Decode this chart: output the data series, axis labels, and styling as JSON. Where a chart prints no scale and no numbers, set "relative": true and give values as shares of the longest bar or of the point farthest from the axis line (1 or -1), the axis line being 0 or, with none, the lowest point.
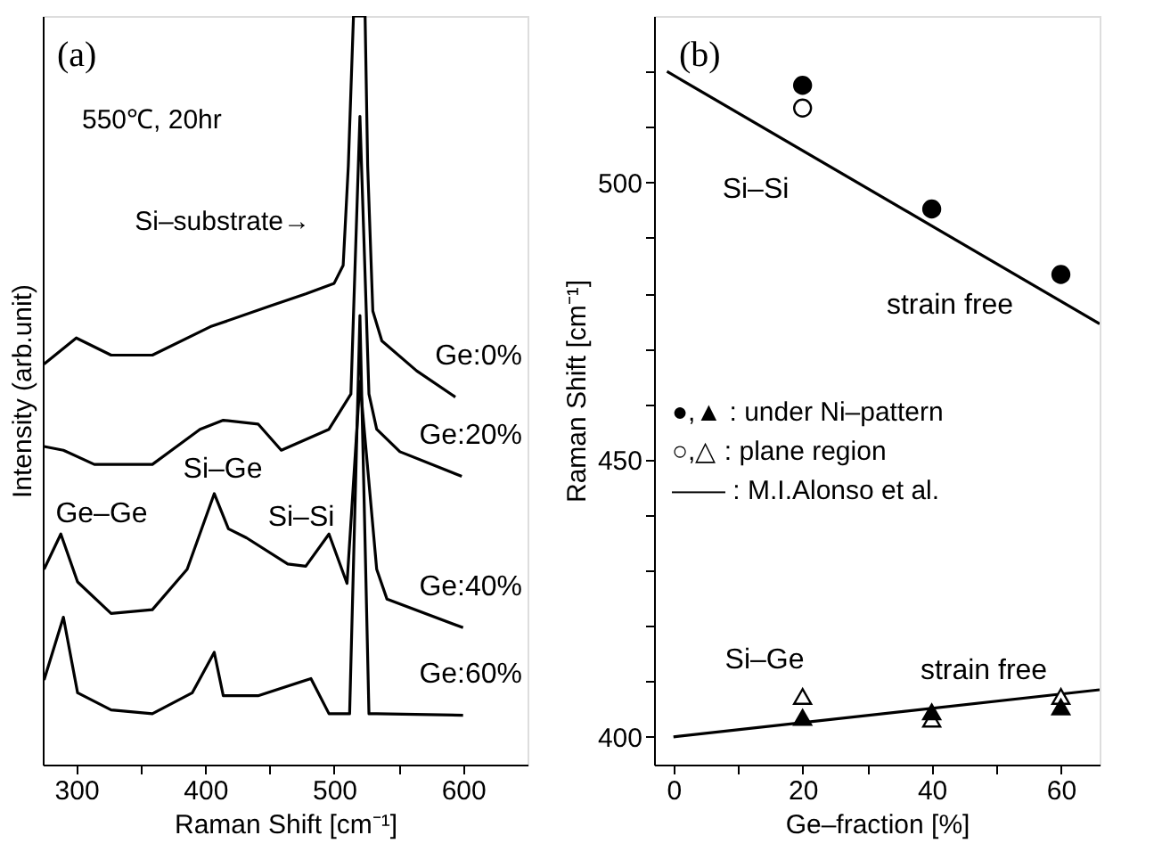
{
  "chart_data": [
    {
      "type": "line",
      "relative": true,
      "xlabel": "Raman Shift [cm⁻¹]",
      "ylabel": "Intensity (arb.unit)",
      "xlim": [
        274,
        650
      ],
      "xticks": [
        300,
        {
          "value": 350,
          "label": null
        },
        400,
        {
          "value": 450,
          "label": null
        },
        500,
        {
          "value": 550,
          "label": null
        },
        600
      ],
      "series": [
        {
          "name": "Ge:0%",
          "color": "#000000",
          "x": [
            275,
            300,
            327,
            359,
            404,
            451,
            478,
            500,
            507,
            511,
            515,
            520,
            524,
            526,
            530,
            537,
            564,
            594
          ],
          "values": [
            0.535,
            0.57,
            0.547,
            0.547,
            0.585,
            0.613,
            0.629,
            0.643,
            0.667,
            0.8,
            1,
            1,
            1,
            0.8,
            0.606,
            0.566,
            0.526,
            0.491
          ]
        },
        {
          "name": "Ge:20%",
          "color": "#000000",
          "x": [
            275,
            290,
            314,
            359,
            396,
            414,
            441,
            459,
            496,
            513,
            520,
            527,
            533,
            551,
            599
          ],
          "values": [
            0.425,
            0.42,
            0.401,
            0.401,
            0.448,
            0.46,
            0.455,
            0.42,
            0.448,
            0.495,
            0.866,
            0.495,
            0.448,
            0.418,
            0.385
          ]
        },
        {
          "name": "Ge:40%",
          "color": "#000000",
          "x": [
            275,
            288,
            301,
            327,
            359,
            386,
            407,
            418,
            432,
            464,
            478,
            496,
            510,
            520,
            533,
            541,
            600
          ],
          "values": [
            0.261,
            0.308,
            0.244,
            0.202,
            0.207,
            0.261,
            0.362,
            0.315,
            0.303,
            0.268,
            0.265,
            0.308,
            0.242,
            0.512,
            0.261,
            0.221,
            0.183
          ]
        },
        {
          "name": "Ge:60%",
          "color": "#000000",
          "x": [
            275,
            290,
            301,
            327,
            359,
            390,
            407,
            414,
            441,
            482,
            496,
            512,
            520,
            527,
            533,
            600
          ],
          "values": [
            0.113,
            0.197,
            0.096,
            0.073,
            0.068,
            0.096,
            0.15,
            0.092,
            0.092,
            0.115,
            0.068,
            0.068,
            0.6,
            0.068,
            0.068,
            0.066
          ]
        }
      ],
      "line_style": "solid",
      "annotations": [
        "(a)",
        "550℃, 20hr",
        "Si–substrate→",
        "Ge–Ge",
        "Si–Ge",
        "Si–Si"
      ]
    },
    {
      "type": "scatter",
      "xlabel": "Ge–fraction [%]",
      "ylabel": "Raman Shift [cm⁻¹]",
      "xlim": [
        -3,
        66
      ],
      "ylim": [
        395,
        530
      ],
      "xticks": [
        0,
        {
          "value": 10,
          "label": null
        },
        20,
        {
          "value": 30,
          "label": null
        },
        40,
        {
          "value": 50,
          "label": null
        },
        60
      ],
      "yticks": [
        400,
        {
          "value": 410,
          "label": null
        },
        {
          "value": 420,
          "label": null
        },
        {
          "value": 430,
          "label": null
        },
        {
          "value": 440,
          "label": null
        },
        450,
        {
          "value": 460,
          "label": null
        },
        {
          "value": 470,
          "label": null
        },
        {
          "value": 480,
          "label": null
        },
        {
          "value": 490,
          "label": null
        },
        500,
        {
          "value": 510,
          "label": null
        },
        {
          "value": 520,
          "label": null
        }
      ],
      "series": [
        {
          "type": "line",
          "color": "#000000",
          "x": [
            -1,
            66
          ],
          "values": [
            520,
            474.5
          ]
        },
        {
          "type": "line",
          "color": "#000000",
          "x": [
            0,
            66
          ],
          "values": [
            400,
            408.5
          ]
        },
        {
          "type": "scatter",
          "marker": "circle",
          "color": "#ffffff",
          "x": [
            20
          ],
          "values": [
            513.4
          ]
        },
        {
          "type": "scatter",
          "marker": "circle",
          "color": "#000000",
          "x": [
            20,
            40,
            60
          ],
          "values": [
            517.5,
            495.2,
            483.4
          ]
        },
        {
          "type": "scatter",
          "marker": "triangle",
          "color": "#ffffff",
          "x": [
            20,
            40,
            60
          ],
          "values": [
            407.3,
            403.2,
            407.3
          ]
        },
        {
          "type": "scatter",
          "marker": "triangle",
          "color": "#000000",
          "x": [
            20,
            40,
            60
          ],
          "values": [
            403.5,
            404.5,
            405.4
          ]
        }
      ],
      "line_style": "solid",
      "annotations": [
        "(b)",
        "●,▲ : under Ni–pattern",
        "○,△ : plane region",
        "—— : M.I.Alonso et al.",
        "Si–Si",
        "strain free",
        "Si–Ge",
        "strain free"
      ]
    }
  ]
}
